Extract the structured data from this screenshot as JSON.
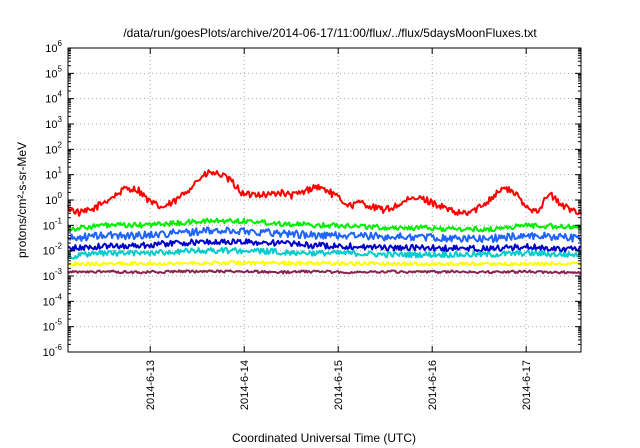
{
  "chart_data": {
    "type": "line",
    "title": "/data/run/goesPlots/archive/2014-06-17/11:00/flux/../flux/5daysMoonFluxes.txt",
    "xlabel": "Coordinated Universal Time (UTC)",
    "ylabel": "protons/cm²-s-sr-MeV",
    "yscale": "log",
    "ylim": [
      1e-06,
      1000000.0
    ],
    "xlim": [
      "2014-06-12 03:00",
      "2014-06-17 14:00"
    ],
    "x_ticks": [
      "2014-6-13",
      "2014-6-14",
      "2014-6-15",
      "2014-6-16",
      "2014-6-17"
    ],
    "y_ticks": [
      {
        "base": "10",
        "exp": "-6"
      },
      {
        "base": "10",
        "exp": "-5"
      },
      {
        "base": "10",
        "exp": "-4"
      },
      {
        "base": "10",
        "exp": "-3"
      },
      {
        "base": "10",
        "exp": "-2"
      },
      {
        "base": "10",
        "exp": "-1"
      },
      {
        "base": "10",
        "exp": "0"
      },
      {
        "base": "10",
        "exp": "1"
      },
      {
        "base": "10",
        "exp": "2"
      },
      {
        "base": "10",
        "exp": "3"
      },
      {
        "base": "10",
        "exp": "4"
      },
      {
        "base": "10",
        "exp": "5"
      },
      {
        "base": "10",
        "exp": "6"
      }
    ],
    "grid": true,
    "legend": "none",
    "series": [
      {
        "color": "#ff0000",
        "x": [
          "2014-06-12 03:00",
          "2014-06-12 06:00",
          "2014-06-12 09:00",
          "2014-06-12 12:00",
          "2014-06-12 15:00",
          "2014-06-12 18:00",
          "2014-06-12 21:00",
          "2014-06-13 00:00",
          "2014-06-13 03:00",
          "2014-06-13 06:00",
          "2014-06-13 09:00",
          "2014-06-13 12:00",
          "2014-06-13 15:00",
          "2014-06-13 18:00",
          "2014-06-13 21:00",
          "2014-06-14 00:00",
          "2014-06-14 03:00",
          "2014-06-14 06:00",
          "2014-06-14 09:00",
          "2014-06-14 12:00",
          "2014-06-14 15:00",
          "2014-06-14 18:00",
          "2014-06-14 21:00",
          "2014-06-15 00:00",
          "2014-06-15 03:00",
          "2014-06-15 06:00",
          "2014-06-15 09:00",
          "2014-06-15 12:00",
          "2014-06-15 15:00",
          "2014-06-15 18:00",
          "2014-06-15 21:00",
          "2014-06-16 00:00",
          "2014-06-16 03:00",
          "2014-06-16 06:00",
          "2014-06-16 09:00",
          "2014-06-16 12:00",
          "2014-06-16 15:00",
          "2014-06-16 18:00",
          "2014-06-16 21:00",
          "2014-06-17 00:00",
          "2014-06-17 03:00",
          "2014-06-17 06:00",
          "2014-06-17 09:00",
          "2014-06-17 12:00",
          "2014-06-17 14:00"
        ],
        "values": [
          0.5,
          0.3,
          0.4,
          0.8,
          1.5,
          3.0,
          2.5,
          0.8,
          0.5,
          0.8,
          2.0,
          6.0,
          12.0,
          10.0,
          5.0,
          1.5,
          1.8,
          1.6,
          2.0,
          1.5,
          2.0,
          3.5,
          2.5,
          1.2,
          0.6,
          0.8,
          0.5,
          0.4,
          0.6,
          1.0,
          1.2,
          0.8,
          0.5,
          0.3,
          0.3,
          0.5,
          1.2,
          3.0,
          2.0,
          0.5,
          0.4,
          1.8,
          0.6,
          0.4,
          0.35
        ]
      },
      {
        "color": "#00ee00",
        "x": [
          "2014-06-12 03:00",
          "2014-06-12 12:00",
          "2014-06-12 21:00",
          "2014-06-13 06:00",
          "2014-06-13 15:00",
          "2014-06-14 00:00",
          "2014-06-14 09:00",
          "2014-06-14 18:00",
          "2014-06-15 03:00",
          "2014-06-15 12:00",
          "2014-06-15 21:00",
          "2014-06-16 06:00",
          "2014-06-16 15:00",
          "2014-06-17 00:00",
          "2014-06-17 09:00",
          "2014-06-17 14:00"
        ],
        "values": [
          0.07,
          0.1,
          0.1,
          0.12,
          0.15,
          0.15,
          0.12,
          0.1,
          0.1,
          0.08,
          0.08,
          0.07,
          0.07,
          0.1,
          0.09,
          0.08
        ]
      },
      {
        "color": "#1e64ff",
        "x": [
          "2014-06-12 03:00",
          "2014-06-12 12:00",
          "2014-06-12 21:00",
          "2014-06-13 06:00",
          "2014-06-13 15:00",
          "2014-06-14 00:00",
          "2014-06-14 09:00",
          "2014-06-14 18:00",
          "2014-06-15 03:00",
          "2014-06-15 12:00",
          "2014-06-15 21:00",
          "2014-06-16 06:00",
          "2014-06-16 15:00",
          "2014-06-17 00:00",
          "2014-06-17 09:00",
          "2014-06-17 14:00"
        ],
        "values": [
          0.03,
          0.04,
          0.04,
          0.05,
          0.06,
          0.06,
          0.05,
          0.04,
          0.04,
          0.035,
          0.035,
          0.03,
          0.03,
          0.04,
          0.035,
          0.03
        ]
      },
      {
        "color": "#0000cc",
        "x": [
          "2014-06-12 03:00",
          "2014-06-12 12:00",
          "2014-06-12 21:00",
          "2014-06-13 06:00",
          "2014-06-13 15:00",
          "2014-06-14 00:00",
          "2014-06-14 09:00",
          "2014-06-14 18:00",
          "2014-06-15 03:00",
          "2014-06-15 12:00",
          "2014-06-15 21:00",
          "2014-06-16 06:00",
          "2014-06-16 15:00",
          "2014-06-17 00:00",
          "2014-06-17 09:00",
          "2014-06-17 14:00"
        ],
        "values": [
          0.012,
          0.015,
          0.016,
          0.02,
          0.022,
          0.022,
          0.02,
          0.016,
          0.015,
          0.013,
          0.013,
          0.012,
          0.012,
          0.014,
          0.012,
          0.011
        ]
      },
      {
        "color": "#00cccc",
        "x": [
          "2014-06-12 03:00",
          "2014-06-12 12:00",
          "2014-06-12 21:00",
          "2014-06-13 06:00",
          "2014-06-13 15:00",
          "2014-06-14 00:00",
          "2014-06-14 09:00",
          "2014-06-14 18:00",
          "2014-06-15 03:00",
          "2014-06-15 12:00",
          "2014-06-15 21:00",
          "2014-06-16 06:00",
          "2014-06-16 15:00",
          "2014-06-17 00:00",
          "2014-06-17 09:00",
          "2014-06-17 14:00"
        ],
        "values": [
          0.006,
          0.008,
          0.008,
          0.009,
          0.01,
          0.01,
          0.009,
          0.008,
          0.008,
          0.007,
          0.007,
          0.007,
          0.007,
          0.008,
          0.007,
          0.007
        ]
      },
      {
        "color": "#ffff00",
        "x": [
          "2014-06-12 03:00",
          "2014-06-12 12:00",
          "2014-06-12 21:00",
          "2014-06-13 06:00",
          "2014-06-13 15:00",
          "2014-06-14 00:00",
          "2014-06-14 09:00",
          "2014-06-14 18:00",
          "2014-06-15 03:00",
          "2014-06-15 12:00",
          "2014-06-15 21:00",
          "2014-06-16 06:00",
          "2014-06-16 15:00",
          "2014-06-17 00:00",
          "2014-06-17 09:00",
          "2014-06-17 14:00"
        ],
        "values": [
          0.003,
          0.003,
          0.0032,
          0.0032,
          0.0033,
          0.0033,
          0.0032,
          0.0032,
          0.0031,
          0.0031,
          0.003,
          0.003,
          0.003,
          0.003,
          0.003,
          0.003
        ]
      },
      {
        "color": "#8b2252",
        "x": [
          "2014-06-12 03:00",
          "2014-06-12 12:00",
          "2014-06-12 21:00",
          "2014-06-13 06:00",
          "2014-06-13 15:00",
          "2014-06-14 00:00",
          "2014-06-14 09:00",
          "2014-06-14 18:00",
          "2014-06-15 03:00",
          "2014-06-15 12:00",
          "2014-06-15 21:00",
          "2014-06-16 06:00",
          "2014-06-16 15:00",
          "2014-06-17 00:00",
          "2014-06-17 09:00",
          "2014-06-17 14:00"
        ],
        "values": [
          0.0014,
          0.0015,
          0.0014,
          0.0015,
          0.0015,
          0.0015,
          0.0014,
          0.0015,
          0.0014,
          0.0015,
          0.0014,
          0.0015,
          0.0014,
          0.0015,
          0.0014,
          0.0013
        ]
      }
    ]
  }
}
